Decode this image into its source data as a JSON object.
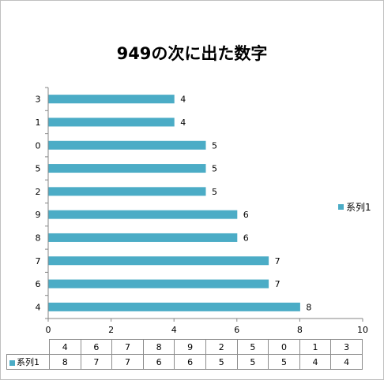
{
  "chart_data": {
    "type": "bar",
    "orientation": "horizontal",
    "title": "949の次に出た数字",
    "categories": [
      "4",
      "6",
      "7",
      "8",
      "9",
      "2",
      "5",
      "0",
      "1",
      "3"
    ],
    "series": [
      {
        "name": "系列1",
        "values": [
          8,
          7,
          7,
          6,
          6,
          5,
          5,
          5,
          4,
          4
        ],
        "color": "#4bacc6"
      }
    ],
    "xlim": [
      0,
      10
    ],
    "xticks": [
      "0",
      "2",
      "4",
      "6",
      "8",
      "10"
    ],
    "legend_position": "right",
    "data_labels": true,
    "data_table": true,
    "grid": false
  }
}
